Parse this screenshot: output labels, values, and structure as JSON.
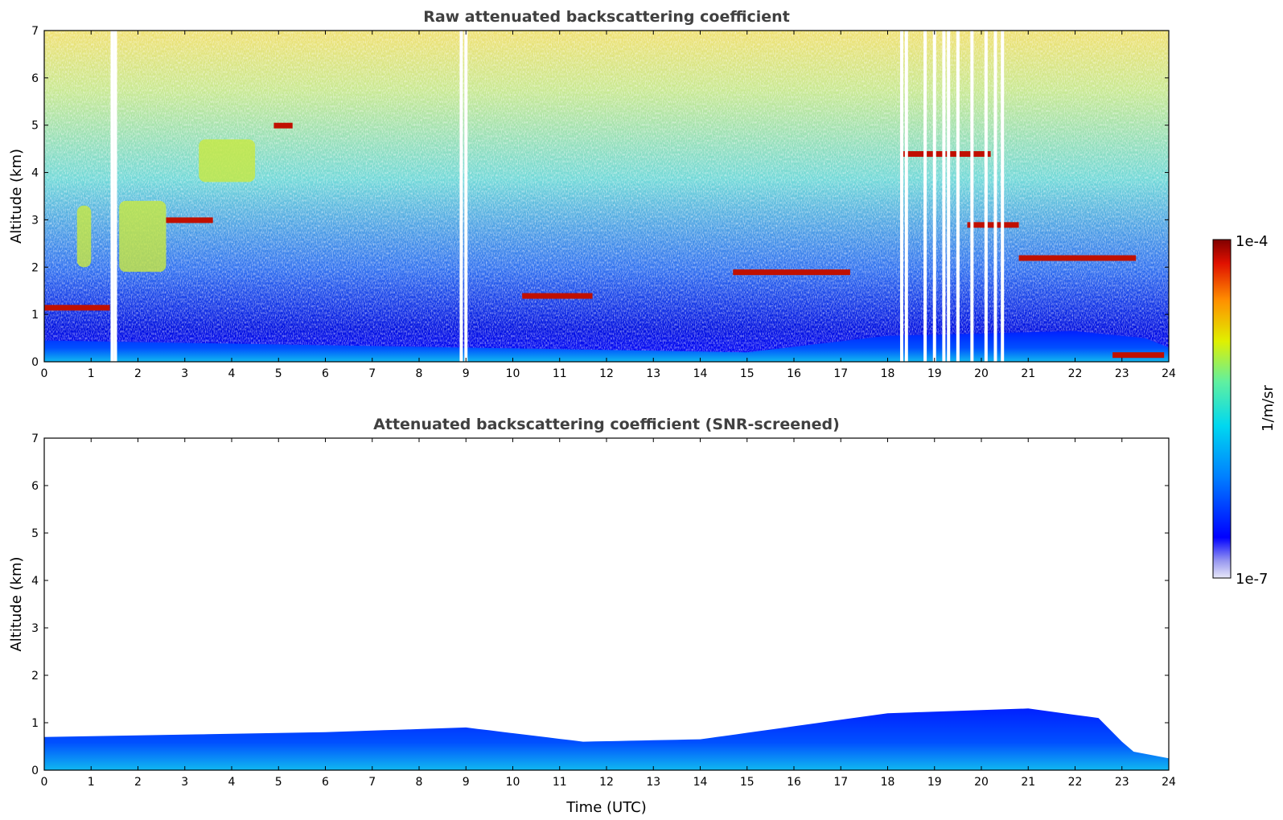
{
  "chart_data": [
    {
      "type": "heatmap",
      "title": "Raw attenuated backscattering coefficient",
      "xlabel": "",
      "ylabel": "Altitude (km)",
      "xlim": [
        0,
        24
      ],
      "ylim": [
        0,
        7
      ],
      "x_ticks": [
        "0",
        "1",
        "2",
        "3",
        "4",
        "5",
        "6",
        "7",
        "8",
        "9",
        "10",
        "11",
        "12",
        "13",
        "14",
        "15",
        "16",
        "17",
        "18",
        "19",
        "20",
        "21",
        "22",
        "23",
        "24"
      ],
      "y_ticks": [
        "0",
        "1",
        "2",
        "3",
        "4",
        "5",
        "6",
        "7"
      ],
      "features": {
        "boundary_layer": {
          "t": [
            0,
            15,
            18,
            22,
            23.5,
            24
          ],
          "top_km": [
            0.45,
            0.2,
            0.55,
            0.65,
            0.5,
            0.3
          ]
        },
        "liquid_cloud_layers": [
          {
            "t_start": 0.0,
            "t_end": 1.4,
            "alt_km": 1.15
          },
          {
            "t_start": 2.6,
            "t_end": 3.6,
            "alt_km": 3.0
          },
          {
            "t_start": 4.9,
            "t_end": 5.3,
            "alt_km": 5.0
          },
          {
            "t_start": 10.2,
            "t_end": 11.7,
            "alt_km": 1.4
          },
          {
            "t_start": 14.7,
            "t_end": 17.2,
            "alt_km": 1.9
          },
          {
            "t_start": 18.3,
            "t_end": 20.2,
            "alt_km": 4.4
          },
          {
            "t_start": 19.7,
            "t_end": 20.8,
            "alt_km": 2.9
          },
          {
            "t_start": 20.8,
            "t_end": 23.3,
            "alt_km": 2.2
          },
          {
            "t_start": 22.8,
            "t_end": 23.9,
            "alt_km": 0.15
          }
        ],
        "ice_virga": [
          {
            "t_start": 0.7,
            "t_end": 1.0,
            "alt_min_km": 2.0,
            "alt_max_km": 3.3
          },
          {
            "t_start": 1.6,
            "t_end": 2.6,
            "alt_min_km": 1.9,
            "alt_max_km": 3.4
          },
          {
            "t_start": 3.3,
            "t_end": 4.5,
            "alt_min_km": 3.8,
            "alt_max_km": 4.7
          }
        ],
        "data_gaps": [
          1.45,
          1.52,
          8.9,
          9.0,
          18.3,
          18.4,
          18.8,
          19.0,
          19.2,
          19.3,
          19.5,
          19.8,
          20.1,
          20.3,
          20.45
        ]
      }
    },
    {
      "type": "heatmap",
      "title": "Attenuated backscattering coefficient (SNR-screened)",
      "xlabel": "Time (UTC)",
      "ylabel": "Altitude (km)",
      "xlim": [
        0,
        24
      ],
      "ylim": [
        0,
        7
      ],
      "x_ticks": [
        "0",
        "1",
        "2",
        "3",
        "4",
        "5",
        "6",
        "7",
        "8",
        "9",
        "10",
        "11",
        "12",
        "13",
        "14",
        "15",
        "16",
        "17",
        "18",
        "19",
        "20",
        "21",
        "22",
        "23",
        "24"
      ],
      "y_ticks": [
        "0",
        "1",
        "2",
        "3",
        "4",
        "5",
        "6",
        "7"
      ],
      "features": {
        "boundary_layer": {
          "t": [
            0,
            6,
            9,
            11.5,
            14,
            18,
            21,
            22.5,
            23.2,
            24
          ],
          "top_km": [
            0.7,
            0.8,
            0.9,
            0.6,
            0.65,
            1.2,
            1.3,
            1.1,
            0.4,
            0.25
          ]
        }
      }
    }
  ],
  "colorbar": {
    "label": "1/m/sr",
    "max_label": "1e-4",
    "min_label": "1e-7",
    "colors": [
      "#e8e8f8",
      "#c8c8f0",
      "#9898f0",
      "#0000ff",
      "#0040ff",
      "#0090ff",
      "#00d0ff",
      "#40f0d0",
      "#90f080",
      "#f0f000",
      "#ffb000",
      "#ff5000",
      "#e00000",
      "#800000"
    ]
  }
}
